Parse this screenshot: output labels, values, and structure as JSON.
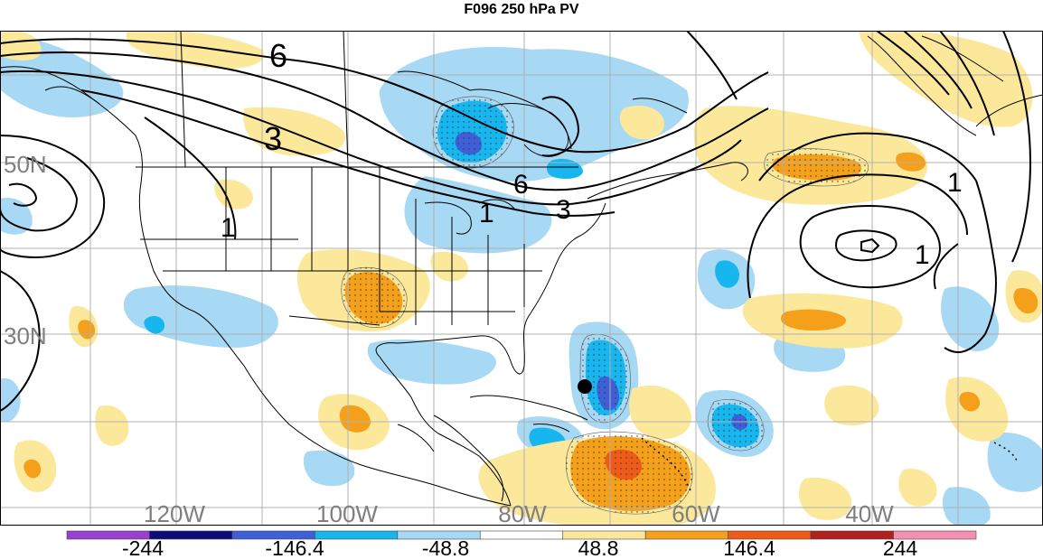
{
  "title": "F096 250 hPa PV",
  "lat_labels": [
    "50N",
    "30N"
  ],
  "lon_labels": [
    "120W",
    "100W",
    "80W",
    "60W",
    "40W"
  ],
  "contour_labels": [
    "6",
    "3",
    "1",
    "6",
    "3",
    "1",
    "1",
    "1"
  ],
  "colorbar": {
    "colors": [
      "#9b3fd1",
      "#0b0b7a",
      "#3f5fd6",
      "#17b6ee",
      "#a7d8f4",
      "#ffffff",
      "#fbe89a",
      "#f5a01a",
      "#ee5a17",
      "#b21f1f",
      "#f48fb4"
    ],
    "labels": [
      "-244",
      "-146.4",
      "-48.8",
      "48.8",
      "146.4",
      "244"
    ]
  },
  "colors": {
    "light_blue": "#a7d8f4",
    "mid_blue": "#17b6ee",
    "dark_blue": "#3f5fd6",
    "light_yellow": "#fbe89a",
    "orange": "#f5a01a",
    "red_orange": "#ee5a17",
    "grid": "#b0b0b0",
    "label_gray": "#7f7f7f"
  }
}
